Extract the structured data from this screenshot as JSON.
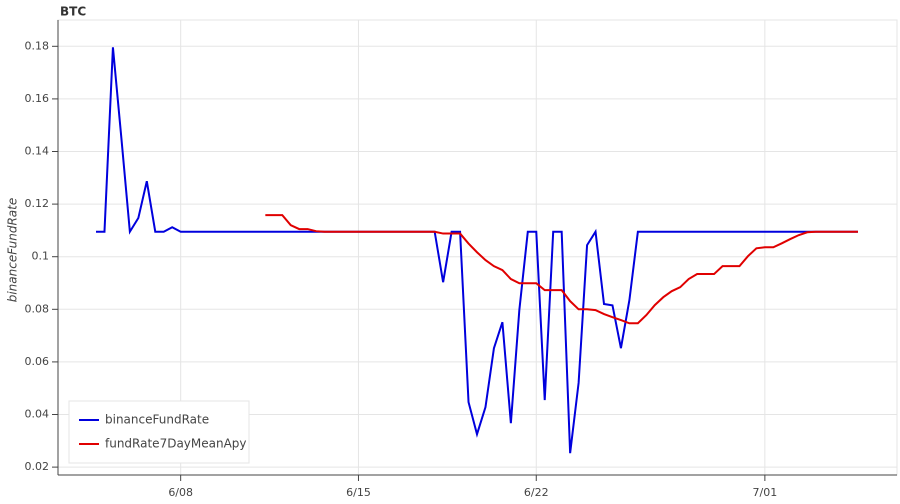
{
  "chart_data": {
    "type": "line",
    "title": "BTC",
    "y_label": "binanceFundRate",
    "categories": [
      null,
      null,
      null,
      null,
      null,
      null,
      null,
      null,
      null,
      null,
      "6/08",
      null,
      null,
      null,
      null,
      null,
      null,
      null,
      null,
      null,
      null,
      null,
      null,
      null,
      null,
      null,
      null,
      null,
      null,
      null,
      null,
      "6/15",
      null,
      null,
      null,
      null,
      null,
      null,
      null,
      null,
      null,
      null,
      null,
      null,
      null,
      null,
      null,
      null,
      null,
      null,
      null,
      null,
      "6/22",
      null,
      null,
      null,
      null,
      null,
      null,
      null,
      null,
      null,
      null,
      null,
      null,
      null,
      null,
      null,
      null,
      null,
      null,
      null,
      null,
      null,
      null,
      null,
      null,
      null,
      null,
      "7/01",
      null,
      null,
      null,
      null,
      null,
      null,
      null,
      null,
      null,
      null,
      null
    ],
    "series": [
      {
        "name": "binanceFundRate",
        "color": "#0000dd",
        "values": [
          0.1095,
          0.1095,
          0.1796,
          0.145,
          0.1095,
          0.1147,
          0.1287,
          0.1095,
          0.1095,
          0.1112,
          0.1095,
          0.1095,
          0.1095,
          0.1095,
          0.1095,
          0.1095,
          0.1095,
          0.1095,
          0.1095,
          0.1095,
          0.1095,
          0.1095,
          0.1095,
          0.1095,
          0.1095,
          0.1095,
          0.1095,
          0.1095,
          0.1095,
          0.1095,
          0.1095,
          0.1095,
          0.1095,
          0.1095,
          0.1095,
          0.1095,
          0.1095,
          0.1095,
          0.1095,
          0.1095,
          0.1095,
          0.0903,
          0.1095,
          0.1095,
          0.0447,
          0.0325,
          0.0428,
          0.0652,
          0.0751,
          0.0367,
          0.0797,
          0.1095,
          0.1095,
          0.0455,
          0.1095,
          0.1095,
          0.0253,
          0.052,
          0.1044,
          0.1095,
          0.082,
          0.0815,
          0.0652,
          0.0835,
          0.1095,
          0.1095,
          0.1095,
          0.1095,
          0.1095,
          0.1095,
          0.1095,
          0.1095,
          0.1095,
          0.1095,
          0.1095,
          0.1095,
          0.1095,
          0.1095,
          0.1095,
          0.1095,
          0.1095,
          0.1095,
          0.1095,
          0.1095,
          0.1095,
          0.1095,
          0.1095,
          0.1095,
          0.1095,
          0.1095,
          0.1095
        ]
      },
      {
        "name": "fundRate7DayMeanApy",
        "color": "#e00000",
        "values": [
          null,
          null,
          null,
          null,
          null,
          null,
          null,
          null,
          null,
          null,
          null,
          null,
          null,
          null,
          null,
          null,
          null,
          null,
          null,
          null,
          0.1158,
          0.1158,
          0.1158,
          0.112,
          0.1105,
          0.1105,
          0.1097,
          0.1095,
          0.1095,
          0.1095,
          0.1095,
          0.1095,
          0.1095,
          0.1095,
          0.1095,
          0.1095,
          0.1095,
          0.1095,
          0.1095,
          0.1095,
          0.1095,
          0.1088,
          0.1088,
          0.1088,
          0.105,
          0.1017,
          0.0987,
          0.0964,
          0.0949,
          0.0915,
          0.0899,
          0.0899,
          0.0899,
          0.0873,
          0.0873,
          0.0873,
          0.0831,
          0.08,
          0.08,
          0.0797,
          0.0782,
          0.077,
          0.0759,
          0.0747,
          0.0747,
          0.0778,
          0.0816,
          0.0846,
          0.0869,
          0.0884,
          0.0915,
          0.0934,
          0.0934,
          0.0934,
          0.0964,
          0.0964,
          0.0964,
          0.1002,
          0.1032,
          0.1036,
          0.1036,
          0.1051,
          0.1067,
          0.1082,
          0.1093,
          0.1095,
          0.1095,
          0.1095,
          0.1095,
          0.1095,
          0.1095
        ]
      }
    ],
    "ylim": [
      0.017,
      0.19
    ],
    "yticks": [
      0.02,
      0.04,
      0.06,
      0.08,
      0.1,
      0.12,
      0.14,
      0.16,
      0.18
    ],
    "grid": true,
    "legend": "bottom-left"
  }
}
